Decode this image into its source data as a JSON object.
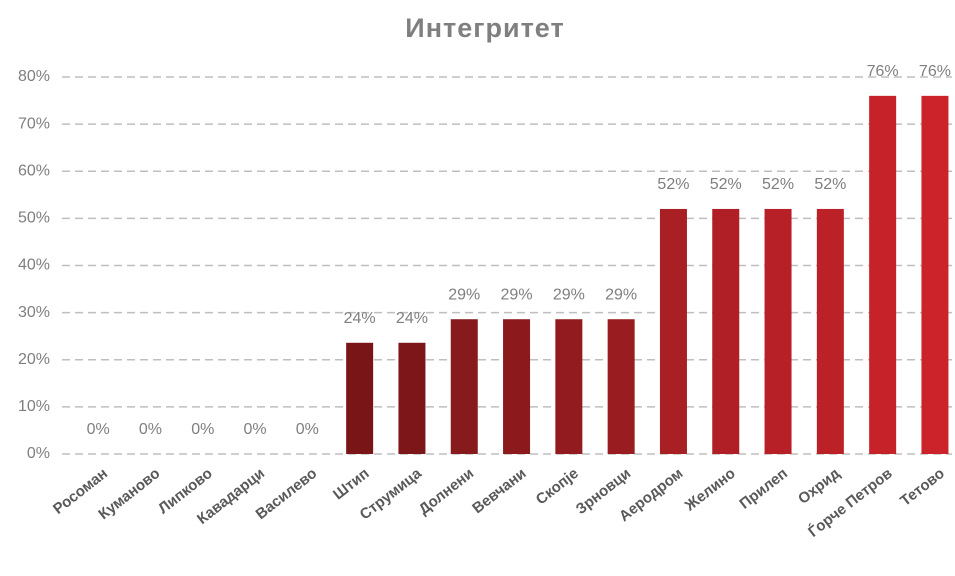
{
  "chart_data": {
    "type": "bar",
    "title": "Интегритет",
    "categories": [
      "Росоман",
      "Куманово",
      "Липково",
      "Кавадарци",
      "Василево",
      "Штип",
      "Струмица",
      "Долнени",
      "Вевчани",
      "Скопје",
      "Зрновци",
      "Аеродром",
      "Желино",
      "Прилеп",
      "Охрид",
      "Ѓорче Петров",
      "Тетово"
    ],
    "values": [
      0,
      0,
      0,
      0,
      0,
      23.6,
      23.6,
      28.6,
      28.6,
      28.6,
      28.6,
      52,
      52,
      52,
      52,
      76,
      76
    ],
    "value_labels": [
      "0%",
      "0%",
      "0%",
      "0%",
      "0%",
      "24%",
      "24%",
      "29%",
      "29%",
      "29%",
      "29%",
      "52%",
      "52%",
      "52%",
      "52%",
      "76%",
      "76%"
    ],
    "colors": [
      "#701214",
      "#721315",
      "#741415",
      "#761416",
      "#781516",
      "#7a1517",
      "#7d1618",
      "#861a1c",
      "#8c1a1d",
      "#921b1f",
      "#981c20",
      "#a81f24",
      "#b01f25",
      "#b72026",
      "#bc2127",
      "#c52229",
      "#cc232b"
    ],
    "ylim": [
      0,
      80
    ],
    "yticks": [
      {
        "value": 0,
        "label": "0%"
      },
      {
        "value": 10,
        "label": "10%"
      },
      {
        "value": 20,
        "label": "20%"
      },
      {
        "value": 30,
        "label": "30%"
      },
      {
        "value": 40,
        "label": "40%"
      },
      {
        "value": 50,
        "label": "50%"
      },
      {
        "value": 60,
        "label": "60%"
      },
      {
        "value": 70,
        "label": "70%"
      },
      {
        "value": 80,
        "label": "80%"
      }
    ],
    "grid": true
  }
}
